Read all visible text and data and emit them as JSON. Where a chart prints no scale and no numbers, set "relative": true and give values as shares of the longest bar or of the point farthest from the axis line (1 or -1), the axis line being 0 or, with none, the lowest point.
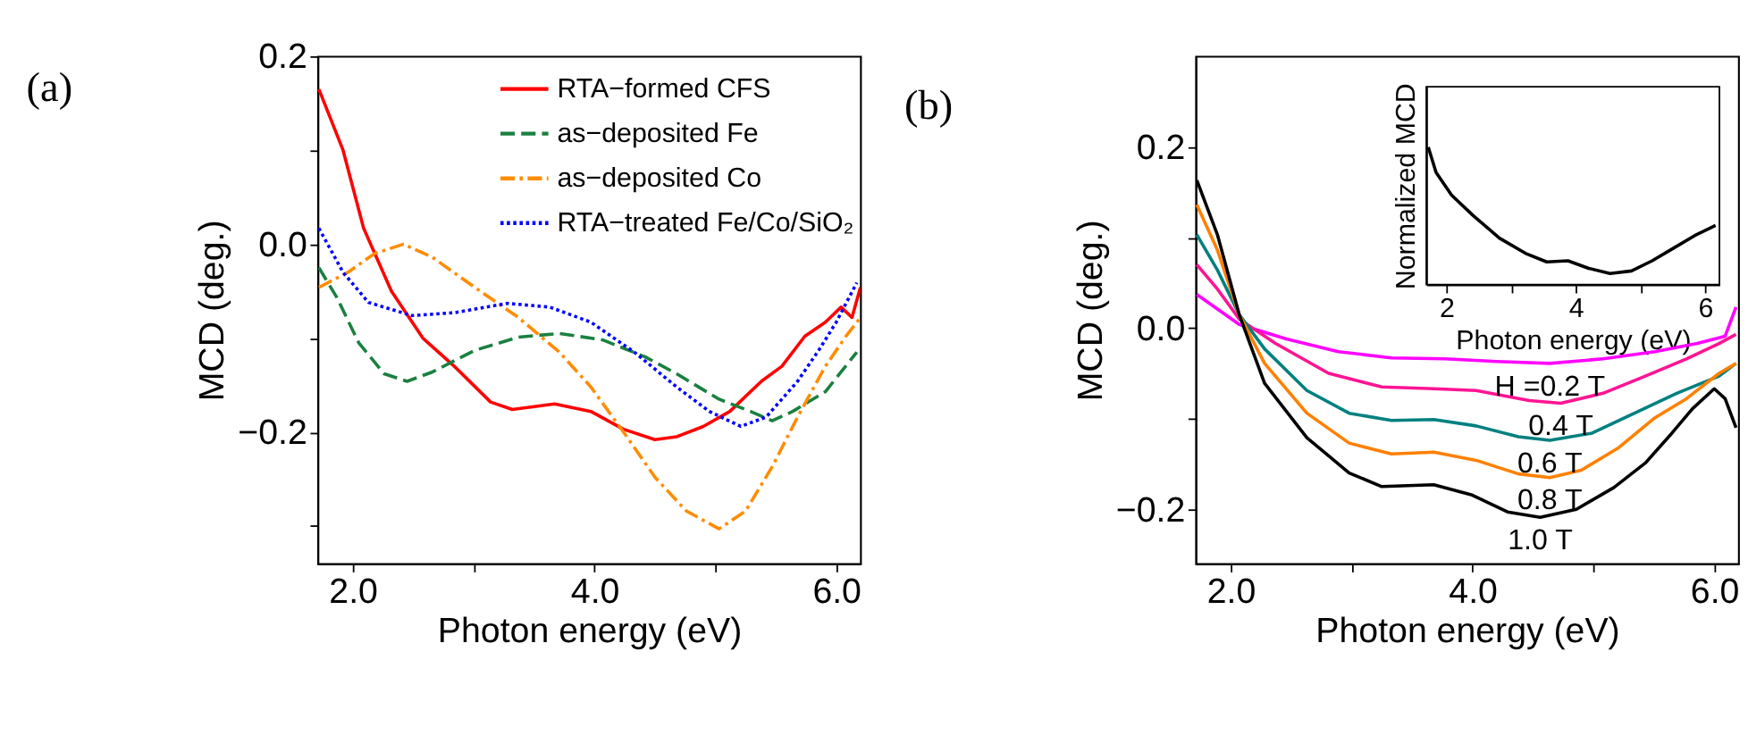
{
  "chart_data": [
    {
      "type": "line",
      "title": "(a)",
      "xlabel": "Photon energy (eV)",
      "ylabel": "MCD (deg.)",
      "xlim": [
        1.71,
        6.2
      ],
      "ylim": [
        -0.34,
        0.2
      ],
      "xticks": [
        {
          "value": 2,
          "label": "2.0"
        },
        {
          "value": 3,
          "label": null
        },
        {
          "value": 4,
          "label": "4.0"
        },
        {
          "value": 5,
          "label": null
        },
        {
          "value": 6,
          "label": "6.0"
        }
      ],
      "yticks": [
        {
          "value": -0.3,
          "label": null
        },
        {
          "value": -0.2,
          "label": "−0.2"
        },
        {
          "value": -0.1,
          "label": null
        },
        {
          "value": 0,
          "label": "0.0"
        },
        {
          "value": 0.1,
          "label": null
        },
        {
          "value": 0.2,
          "label": "0.2"
        }
      ],
      "grid": false,
      "legend": "top right",
      "series": [
        {
          "name": "RTA−formed CFS",
          "color": "#ff0000",
          "line_style": "solid",
          "x": [
            1.72,
            1.92,
            2.09,
            2.32,
            2.58,
            2.84,
            3.14,
            3.32,
            3.67,
            3.97,
            4.24,
            4.5,
            4.68,
            4.9,
            5.12,
            5.38,
            5.55,
            5.74,
            5.91,
            6.04,
            6.13,
            6.2
          ],
          "values": [
            0.165,
            0.1,
            0.017,
            -0.05,
            -0.1,
            -0.13,
            -0.168,
            -0.176,
            -0.17,
            -0.178,
            -0.197,
            -0.208,
            -0.205,
            -0.194,
            -0.178,
            -0.146,
            -0.13,
            -0.098,
            -0.083,
            -0.067,
            -0.078,
            -0.046
          ]
        },
        {
          "name": "as−deposited Fe",
          "color": "#1a8040",
          "line_style": "dashed",
          "x": [
            1.72,
            1.87,
            2.05,
            2.26,
            2.45,
            2.66,
            3.01,
            3.37,
            3.71,
            4.07,
            4.42,
            4.68,
            5.03,
            5.29,
            5.47,
            5.64,
            5.91,
            6.04,
            6.17
          ],
          "values": [
            -0.025,
            -0.057,
            -0.105,
            -0.138,
            -0.146,
            -0.136,
            -0.113,
            -0.099,
            -0.095,
            -0.102,
            -0.12,
            -0.138,
            -0.165,
            -0.178,
            -0.188,
            -0.178,
            -0.157,
            -0.136,
            -0.115
          ]
        },
        {
          "name": "as−deposited Co",
          "color": "#ff8c00",
          "line_style": "dashdot",
          "x": [
            1.72,
            1.96,
            2.18,
            2.42,
            2.66,
            3.01,
            3.37,
            3.71,
            3.97,
            4.24,
            4.5,
            4.76,
            5.03,
            5.25,
            5.47,
            5.68,
            5.91,
            6.08,
            6.2
          ],
          "values": [
            -0.046,
            -0.03,
            -0.01,
            0.0,
            -0.014,
            -0.046,
            -0.078,
            -0.115,
            -0.152,
            -0.2,
            -0.248,
            -0.284,
            -0.303,
            -0.284,
            -0.237,
            -0.184,
            -0.13,
            -0.098,
            -0.078
          ]
        },
        {
          "name": "RTA−treated Fe/Co/SiO₂",
          "color": "#0000ff",
          "line_style": "dotted",
          "x": [
            1.72,
            1.92,
            2.13,
            2.49,
            2.84,
            3.28,
            3.63,
            3.97,
            4.33,
            4.68,
            4.95,
            5.21,
            5.42,
            5.68,
            5.87,
            6.0,
            6.17
          ],
          "values": [
            0.017,
            -0.03,
            -0.062,
            -0.076,
            -0.073,
            -0.063,
            -0.067,
            -0.083,
            -0.115,
            -0.152,
            -0.178,
            -0.194,
            -0.184,
            -0.146,
            -0.11,
            -0.083,
            -0.041
          ]
        }
      ]
    },
    {
      "type": "line",
      "title": "(b)",
      "xlabel": "Photon energy (eV)",
      "ylabel": "MCD (deg.)",
      "xlim": [
        1.71,
        6.2
      ],
      "ylim": [
        -0.26,
        0.3
      ],
      "xticks": [
        {
          "value": 2,
          "label": "2.0"
        },
        {
          "value": 3,
          "label": null
        },
        {
          "value": 4,
          "label": "4.0"
        },
        {
          "value": 5,
          "label": null
        },
        {
          "value": 6,
          "label": "6.0"
        }
      ],
      "yticks": [
        {
          "value": -0.2,
          "label": "−0.2"
        },
        {
          "value": -0.1,
          "label": null
        },
        {
          "value": 0,
          "label": "0.0"
        },
        {
          "value": 0.1,
          "label": null
        },
        {
          "value": 0.2,
          "label": "0.2"
        }
      ],
      "grid": false,
      "series": [
        {
          "name": "H =0.2 T",
          "color": "#ff00ff",
          "line_style": "solid",
          "x": [
            1.72,
            1.89,
            2.07,
            2.46,
            2.89,
            3.33,
            3.77,
            4.2,
            4.64,
            5.08,
            5.51,
            5.86,
            6.09,
            6.18
          ],
          "values": [
            0.037,
            0.021,
            0.004,
            -0.012,
            -0.026,
            -0.033,
            -0.034,
            -0.037,
            -0.039,
            -0.034,
            -0.026,
            -0.017,
            -0.009,
            0.023
          ]
        },
        {
          "name": "0.4 T",
          "color": "#ff1493",
          "line_style": "solid",
          "x": [
            1.72,
            1.89,
            2.07,
            2.37,
            2.81,
            3.25,
            3.68,
            4.03,
            4.47,
            4.73,
            5.08,
            5.43,
            5.77,
            6.04,
            6.18
          ],
          "values": [
            0.07,
            0.043,
            0.01,
            -0.017,
            -0.05,
            -0.065,
            -0.067,
            -0.069,
            -0.08,
            -0.083,
            -0.072,
            -0.053,
            -0.034,
            -0.017,
            -0.007
          ]
        },
        {
          "name": "0.6 T",
          "color": "#008080",
          "line_style": "solid",
          "x": [
            1.72,
            1.89,
            2.07,
            2.28,
            2.63,
            2.98,
            3.33,
            3.68,
            4.03,
            4.38,
            4.64,
            4.99,
            5.34,
            5.69,
            6.04,
            6.18
          ],
          "values": [
            0.103,
            0.064,
            0.015,
            -0.023,
            -0.069,
            -0.094,
            -0.102,
            -0.101,
            -0.108,
            -0.12,
            -0.124,
            -0.116,
            -0.094,
            -0.072,
            -0.053,
            -0.039
          ]
        },
        {
          "name": "0.8 T",
          "color": "#ff8000",
          "line_style": "solid",
          "x": [
            1.72,
            1.89,
            2.07,
            2.28,
            2.63,
            2.98,
            3.33,
            3.68,
            4.03,
            4.38,
            4.64,
            4.9,
            5.21,
            5.51,
            5.77,
            6.04,
            6.18
          ],
          "values": [
            0.136,
            0.086,
            0.015,
            -0.039,
            -0.094,
            -0.127,
            -0.139,
            -0.137,
            -0.146,
            -0.161,
            -0.165,
            -0.157,
            -0.132,
            -0.099,
            -0.078,
            -0.05,
            -0.039
          ]
        },
        {
          "name": "1.0 T",
          "color": "#000000",
          "line_style": "solid",
          "x": [
            1.72,
            1.89,
            2.07,
            2.28,
            2.63,
            2.98,
            3.25,
            3.68,
            3.99,
            4.29,
            4.56,
            4.86,
            5.17,
            5.43,
            5.65,
            5.82,
            6.0,
            6.09,
            6.18
          ],
          "values": [
            0.163,
            0.103,
            0.015,
            -0.061,
            -0.121,
            -0.16,
            -0.175,
            -0.173,
            -0.184,
            -0.203,
            -0.209,
            -0.2,
            -0.176,
            -0.149,
            -0.116,
            -0.089,
            -0.067,
            -0.078,
            -0.11
          ]
        }
      ]
    },
    {
      "type": "line",
      "xlabel": "Photon energy (eV)",
      "ylabel": "Normalized MCD",
      "relative": true,
      "xlim": [
        1.69,
        6.22
      ],
      "xticks": [
        2,
        {
          "value": 3,
          "label": null
        },
        4,
        {
          "value": 5,
          "label": null
        },
        6
      ],
      "grid": false,
      "series": [
        {
          "color": "#000000",
          "line_style": "solid",
          "x": [
            1.72,
            1.84,
            2.08,
            2.41,
            2.82,
            3.22,
            3.55,
            3.88,
            4.2,
            4.53,
            4.86,
            5.18,
            5.51,
            5.84,
            6.16
          ],
          "values": [
            1.0,
            0.816,
            0.651,
            0.504,
            0.338,
            0.228,
            0.165,
            0.173,
            0.118,
            0.081,
            0.099,
            0.173,
            0.265,
            0.357,
            0.43
          ]
        }
      ]
    }
  ]
}
